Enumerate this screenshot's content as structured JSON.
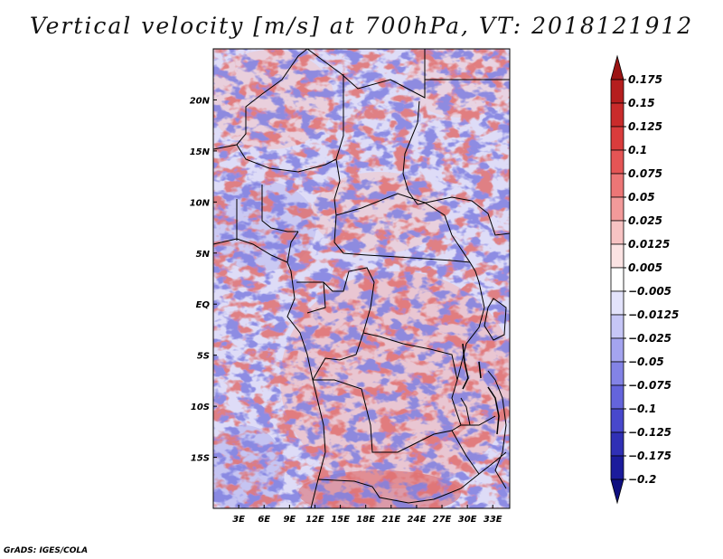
{
  "chart_data": {
    "type": "heatmap",
    "title": "Vertical velocity [m/s] at 700hPa, VT: 2018121912",
    "variable": "Vertical velocity",
    "units": "m/s",
    "level": "700hPa",
    "valid_time": "2018121912",
    "x_axis": {
      "ticks": [
        "3E",
        "6E",
        "9E",
        "12E",
        "15E",
        "18E",
        "21E",
        "24E",
        "27E",
        "30E",
        "33E"
      ],
      "tick_values": [
        3,
        6,
        9,
        12,
        15,
        18,
        21,
        24,
        27,
        30,
        33
      ],
      "range": [
        0,
        35
      ]
    },
    "y_axis": {
      "ticks": [
        "20N",
        "15N",
        "10N",
        "5N",
        "EQ",
        "5S",
        "10S",
        "15S"
      ],
      "tick_values": [
        20,
        15,
        10,
        5,
        0,
        -5,
        -10,
        -15
      ],
      "range": [
        -20,
        25
      ]
    },
    "colorbar": {
      "levels": [
        "0.175",
        "0.15",
        "0.125",
        "0.1",
        "0.075",
        "0.05",
        "0.025",
        "0.0125",
        "0.005",
        "−0.005",
        "−0.0125",
        "−0.025",
        "−0.05",
        "−0.075",
        "−0.1",
        "−0.125",
        "−0.175",
        "−0.2"
      ],
      "colors": [
        "#9b1414",
        "#b51e1e",
        "#c92b2b",
        "#d93c3c",
        "#e45555",
        "#ec7676",
        "#f29a9a",
        "#f7c3c3",
        "#fbe3e3",
        "#ffffff",
        "#e3e3fb",
        "#c6c6f6",
        "#a4a4ef",
        "#8383e6",
        "#6464dc",
        "#4848cc",
        "#3030b5",
        "#1c1c9c",
        "#0f0f80"
      ]
    }
  },
  "footer": {
    "credit": "GrADS: IGES/COLA"
  }
}
